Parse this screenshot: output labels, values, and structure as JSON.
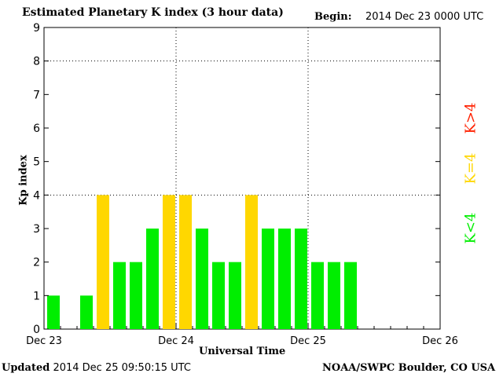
{
  "header": {
    "title": "Estimated Planetary K index (3 hour data)",
    "begin_label": "Begin:",
    "begin_value": "2014 Dec 23 0000 UTC"
  },
  "footer": {
    "updated_label": "Updated",
    "updated_value": "2014 Dec 25 09:50:15 UTC",
    "credit": "NOAA/SWPC Boulder, CO USA"
  },
  "legend": [
    {
      "label": "K>4",
      "color": "#ff2000"
    },
    {
      "label": "K=4",
      "color": "#ffd700"
    },
    {
      "label": "K<4",
      "color": "#00ee00"
    }
  ],
  "chart_data": {
    "type": "bar",
    "title": "Estimated Planetary K index (3 hour data)",
    "xlabel": "Universal Time",
    "ylabel": "Kp index",
    "ylim": [
      0,
      9
    ],
    "yticks": [
      "0",
      "1",
      "2",
      "3",
      "4",
      "5",
      "6",
      "7",
      "8",
      "9"
    ],
    "xticks": [
      "Dec 23",
      "Dec 24",
      "Dec 25",
      "Dec 26"
    ],
    "grid": true,
    "slots_per_day": 8,
    "values": [
      1,
      0,
      1,
      4,
      2,
      2,
      3,
      4,
      4,
      3,
      2,
      2,
      4,
      3,
      3,
      3,
      2,
      2,
      2
    ],
    "colors": {
      "below4": "#00ee00",
      "equal4": "#ffd700",
      "above4": "#ff2000"
    }
  }
}
